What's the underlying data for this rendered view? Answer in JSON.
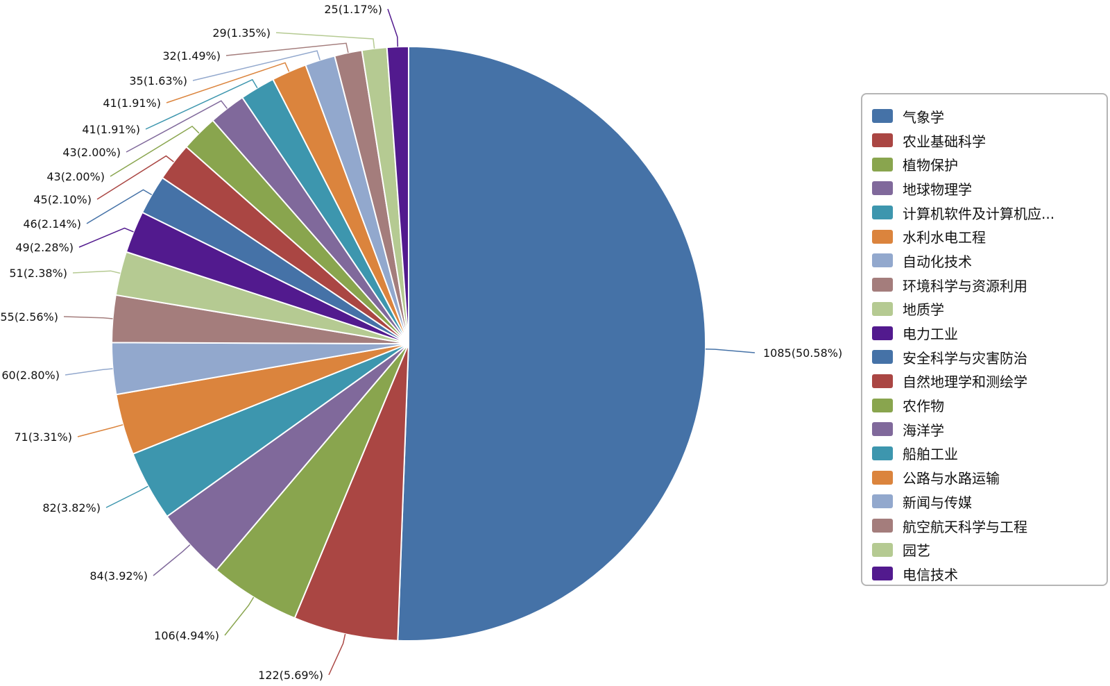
{
  "chart_data": {
    "type": "pie",
    "legend_position": "right",
    "slices": [
      {
        "name": "气象学",
        "value": 1085,
        "label": "1085(50.58%)",
        "color": "#4572a7"
      },
      {
        "name": "农业基础科学",
        "value": 122,
        "label": "122(5.69%)",
        "color": "#aa4643"
      },
      {
        "name": "植物保护",
        "value": 106,
        "label": "106(4.94%)",
        "color": "#89a54e"
      },
      {
        "name": "地球物理学",
        "value": 84,
        "label": "84(3.92%)",
        "color": "#80699b"
      },
      {
        "name": "计算机软件及计算机应...",
        "value": 82,
        "label": "82(3.82%)",
        "color": "#3d96ae"
      },
      {
        "name": "水利水电工程",
        "value": 71,
        "label": "71(3.31%)",
        "color": "#db843d"
      },
      {
        "name": "自动化技术",
        "value": 60,
        "label": "60(2.80%)",
        "color": "#92a8cd"
      },
      {
        "name": "环境科学与资源利用",
        "value": 55,
        "label": "55(2.56%)",
        "color": "#a47d7c"
      },
      {
        "name": "地质学",
        "value": 51,
        "label": "51(2.38%)",
        "color": "#b5ca92"
      },
      {
        "name": "电力工业",
        "value": 49,
        "label": "49(2.28%)",
        "color": "#521a8e"
      },
      {
        "name": "安全科学与灾害防治",
        "value": 46,
        "label": "46(2.14%)",
        "color": "#4572a7"
      },
      {
        "name": "自然地理学和测绘学",
        "value": 45,
        "label": "45(2.10%)",
        "color": "#aa4643"
      },
      {
        "name": "农作物",
        "value": 43,
        "label": "43(2.00%)",
        "color": "#89a54e"
      },
      {
        "name": "海洋学",
        "value": 43,
        "label": "43(2.00%)",
        "color": "#80699b"
      },
      {
        "name": "船舶工业",
        "value": 41,
        "label": "41(1.91%)",
        "color": "#3d96ae"
      },
      {
        "name": "公路与水路运输",
        "value": 41,
        "label": "41(1.91%)",
        "color": "#db843d"
      },
      {
        "name": "新闻与传媒",
        "value": 35,
        "label": "35(1.63%)",
        "color": "#92a8cd"
      },
      {
        "name": "航空航天科学与工程",
        "value": 32,
        "label": "32(1.49%)",
        "color": "#a47d7c"
      },
      {
        "name": "园艺",
        "value": 29,
        "label": "29(1.35%)",
        "color": "#b5ca92"
      },
      {
        "name": "电信技术",
        "value": 25,
        "label": "25(1.17%)",
        "color": "#521a8e"
      }
    ]
  }
}
